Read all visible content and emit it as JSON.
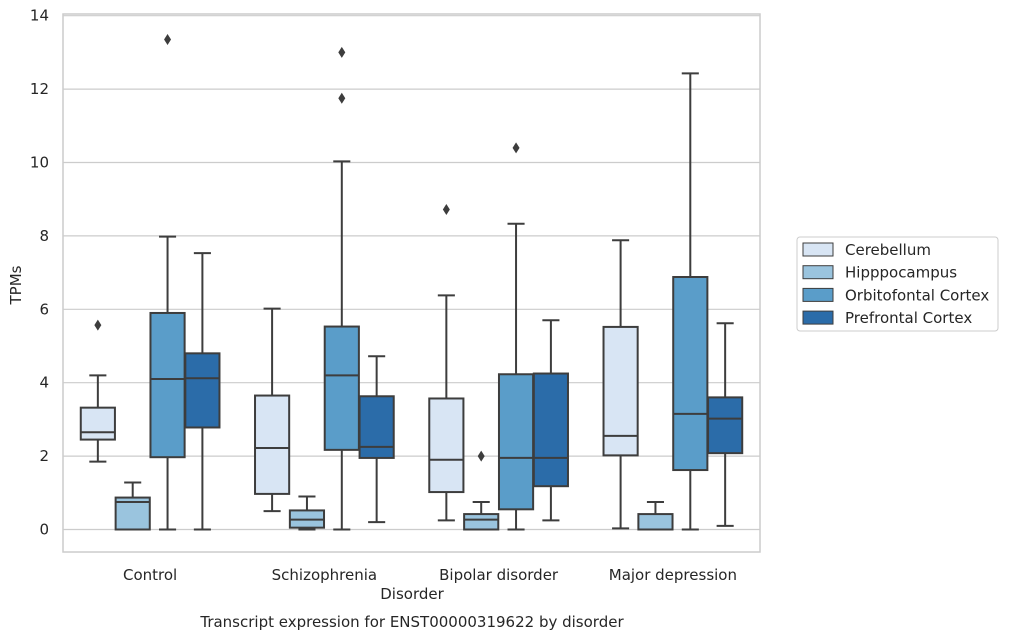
{
  "chart_data": {
    "type": "box",
    "xlabel": "Disorder",
    "ylabel": "TPMs",
    "caption": "Transcript expression for ENST00000319622 by disorder",
    "ylim": [
      -0.6,
      14.0
    ],
    "yticks": [
      0,
      2,
      4,
      6,
      8,
      10,
      12,
      14
    ],
    "grid": "horizontal",
    "legend_position": "right",
    "categories": [
      "Control",
      "Schizophrenia",
      "Bipolar disorder",
      "Major depression"
    ],
    "series": [
      {
        "name": "Cerebellum",
        "color": "#d8e5f4",
        "boxes": [
          {
            "whislo": 1.85,
            "q1": 2.45,
            "med": 2.65,
            "q3": 3.32,
            "whishi": 4.2,
            "fliers": [
              5.57
            ]
          },
          {
            "whislo": 0.5,
            "q1": 0.97,
            "med": 2.22,
            "q3": 3.65,
            "whishi": 6.02,
            "fliers": []
          },
          {
            "whislo": 0.25,
            "q1": 1.02,
            "med": 1.9,
            "q3": 3.57,
            "whishi": 6.38,
            "fliers": [
              8.72
            ]
          },
          {
            "whislo": 0.03,
            "q1": 2.02,
            "med": 2.55,
            "q3": 5.52,
            "whishi": 7.88,
            "fliers": []
          }
        ]
      },
      {
        "name": "Hipppocampus",
        "color": "#9ac4de",
        "boxes": [
          {
            "whislo": 0.0,
            "q1": 0.0,
            "med": 0.75,
            "q3": 0.87,
            "whishi": 1.28,
            "fliers": []
          },
          {
            "whislo": 0.0,
            "q1": 0.05,
            "med": 0.27,
            "q3": 0.52,
            "whishi": 0.9,
            "fliers": []
          },
          {
            "whislo": 0.0,
            "q1": 0.0,
            "med": 0.27,
            "q3": 0.42,
            "whishi": 0.75,
            "fliers": [
              2.0
            ]
          },
          {
            "whislo": 0.0,
            "q1": 0.0,
            "med": 0.0,
            "q3": 0.42,
            "whishi": 0.75,
            "fliers": []
          }
        ]
      },
      {
        "name": "Orbitofontal Cortex",
        "color": "#5a9dc9",
        "boxes": [
          {
            "whislo": 0.0,
            "q1": 1.97,
            "med": 4.1,
            "q3": 5.9,
            "whishi": 7.98,
            "fliers": [
              13.35
            ]
          },
          {
            "whislo": 0.0,
            "q1": 2.17,
            "med": 4.2,
            "q3": 5.53,
            "whishi": 10.03,
            "fliers": [
              11.75,
              13.0
            ]
          },
          {
            "whislo": 0.0,
            "q1": 0.55,
            "med": 1.95,
            "q3": 4.23,
            "whishi": 8.33,
            "fliers": [
              10.4
            ]
          },
          {
            "whislo": 0.0,
            "q1": 1.62,
            "med": 3.15,
            "q3": 6.88,
            "whishi": 12.43,
            "fliers": []
          }
        ]
      },
      {
        "name": "Prefrontal Cortex",
        "color": "#2b6ca9",
        "boxes": [
          {
            "whislo": 0.0,
            "q1": 2.78,
            "med": 4.12,
            "q3": 4.8,
            "whishi": 7.53,
            "fliers": []
          },
          {
            "whislo": 0.2,
            "q1": 1.95,
            "med": 2.25,
            "q3": 3.63,
            "whishi": 4.72,
            "fliers": []
          },
          {
            "whislo": 0.25,
            "q1": 1.18,
            "med": 1.95,
            "q3": 4.25,
            "whishi": 5.7,
            "fliers": []
          },
          {
            "whislo": 0.1,
            "q1": 2.08,
            "med": 3.02,
            "q3": 3.6,
            "whishi": 5.62,
            "fliers": []
          }
        ]
      }
    ]
  }
}
